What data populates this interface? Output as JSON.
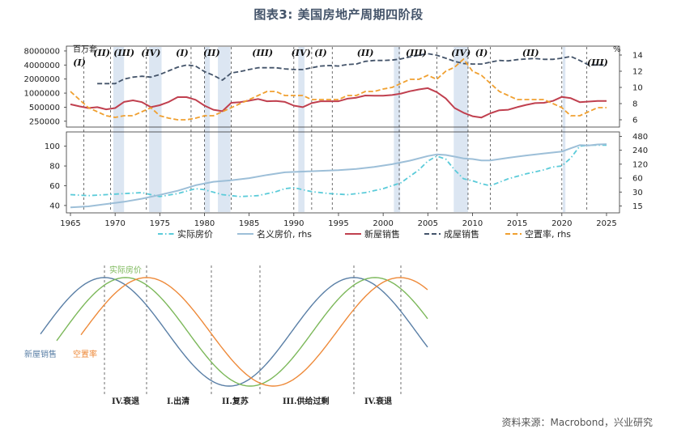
{
  "title": "图表3:  美国房地产周期四阶段",
  "source": "资料来源：Macrobond，兴业研究",
  "colors": {
    "real_price": "#5bcbd9",
    "nominal_price": "#9dbfd8",
    "new_sales": "#c0404f",
    "existing_sales": "#44546a",
    "vacancy": "#f0a030",
    "shade": "#dce6f2",
    "curve_new": "#5a7fa6",
    "curve_real": "#7cb85a",
    "curve_vac": "#ee8a3a"
  },
  "chart_data": [
    {
      "type": "line",
      "panel": "top",
      "units_label": "百万套",
      "right_unit": "%",
      "x_range": [
        1965,
        2026
      ],
      "left_axis": {
        "scale": "log",
        "ticks": [
          250000,
          500000,
          1000000,
          2000000,
          4000000,
          8000000
        ],
        "tick_labels": [
          "250000",
          "500000",
          "1000000",
          "2000000",
          "4000000",
          "8000000"
        ]
      },
      "right_axis": {
        "ticks": [
          6,
          8,
          10,
          12,
          14
        ],
        "range": [
          5.5,
          14.8
        ]
      },
      "series": [
        {
          "name": "新屋销售",
          "axis": "left",
          "color_key": "new_sales",
          "style": "solid",
          "x": [
            1965,
            1966,
            1967,
            1968,
            1969,
            1970,
            1971,
            1972,
            1973,
            1974,
            1975,
            1976,
            1977,
            1978,
            1979,
            1980,
            1981,
            1982,
            1983,
            1984,
            1985,
            1986,
            1987,
            1988,
            1989,
            1990,
            1991,
            1992,
            1993,
            1994,
            1995,
            1996,
            1997,
            1998,
            1999,
            2000,
            2001,
            2002,
            2003,
            2004,
            2005,
            2006,
            2007,
            2008,
            2009,
            2010,
            2011,
            2012,
            2013,
            2014,
            2015,
            2016,
            2017,
            2018,
            2019,
            2020,
            2021,
            2022,
            2023,
            2024,
            2025
          ],
          "y": [
            575000,
            520000,
            480000,
            500000,
            450000,
            480000,
            650000,
            700000,
            640000,
            500000,
            550000,
            650000,
            820000,
            820000,
            720000,
            540000,
            440000,
            410000,
            620000,
            640000,
            690000,
            750000,
            670000,
            680000,
            650000,
            540000,
            500000,
            610000,
            670000,
            670000,
            670000,
            760000,
            800000,
            890000,
            880000,
            880000,
            910000,
            980000,
            1100000,
            1200000,
            1280000,
            1050000,
            770000,
            480000,
            380000,
            320000,
            300000,
            370000,
            430000,
            440000,
            500000,
            560000,
            610000,
            620000,
            680000,
            830000,
            780000,
            640000,
            660000,
            680000,
            680000
          ]
        },
        {
          "name": "成屋销售",
          "axis": "left",
          "color_key": "existing_sales",
          "style": "dash",
          "x": [
            1968,
            1969,
            1970,
            1971,
            1972,
            1973,
            1974,
            1975,
            1976,
            1977,
            1978,
            1979,
            1980,
            1981,
            1982,
            1983,
            1984,
            1985,
            1986,
            1987,
            1988,
            1989,
            1990,
            1991,
            1992,
            1993,
            1994,
            1995,
            1996,
            1997,
            1998,
            1999,
            2000,
            2001,
            2002,
            2003,
            2004,
            2005,
            2006,
            2007,
            2008,
            2009,
            2010,
            2011,
            2012,
            2013,
            2014,
            2015,
            2016,
            2017,
            2018,
            2019,
            2020,
            2021,
            2022,
            2023,
            2024,
            2025
          ],
          "y": [
            1600000,
            1600000,
            1600000,
            2000000,
            2200000,
            2300000,
            2200000,
            2500000,
            3000000,
            3600000,
            4000000,
            3800000,
            2900000,
            2400000,
            1900000,
            2700000,
            2900000,
            3200000,
            3500000,
            3500000,
            3500000,
            3300000,
            3200000,
            3200000,
            3500000,
            3800000,
            3900000,
            3800000,
            4100000,
            4200000,
            4800000,
            5000000,
            5000000,
            5100000,
            5400000,
            6000000,
            6500000,
            7000000,
            6500000,
            5600000,
            4800000,
            4300000,
            4200000,
            4200000,
            4600000,
            5000000,
            4900000,
            5200000,
            5400000,
            5500000,
            5300000,
            5300000,
            5600000,
            6100000,
            5000000,
            4000000,
            4000000,
            4000000
          ]
        },
        {
          "name": "空置率, rhs",
          "axis": "right",
          "color_key": "vacancy",
          "style": "dash",
          "x": [
            1965,
            1966,
            1967,
            1968,
            1969,
            1970,
            1971,
            1972,
            1973,
            1974,
            1975,
            1976,
            1977,
            1978,
            1979,
            1980,
            1981,
            1982,
            1983,
            1984,
            1985,
            1986,
            1987,
            1988,
            1989,
            1990,
            1991,
            1992,
            1993,
            1994,
            1995,
            1996,
            1997,
            1998,
            1999,
            2000,
            2001,
            2002,
            2003,
            2004,
            2005,
            2006,
            2007,
            2008,
            2009,
            2010,
            2011,
            2012,
            2013,
            2014,
            2015,
            2016,
            2017,
            2018,
            2019,
            2020,
            2021,
            2022,
            2023,
            2024,
            2025
          ],
          "y": [
            9.5,
            8.5,
            7.5,
            7.0,
            6.5,
            6.3,
            6.5,
            6.5,
            7.0,
            7.5,
            6.5,
            6.2,
            6.0,
            6.0,
            6.2,
            6.5,
            6.5,
            7.0,
            7.5,
            8.0,
            8.5,
            9.0,
            9.5,
            9.5,
            9.0,
            9.0,
            9.0,
            8.5,
            8.5,
            8.5,
            8.5,
            9.0,
            9.0,
            9.5,
            9.5,
            9.8,
            10.0,
            10.5,
            11.0,
            11.0,
            11.5,
            11.0,
            12.0,
            12.5,
            13.5,
            12.0,
            11.5,
            10.5,
            9.5,
            9.0,
            8.5,
            8.5,
            8.5,
            8.5,
            8.0,
            7.5,
            6.5,
            6.5,
            7.0,
            7.5,
            7.5
          ]
        }
      ],
      "phases": [
        {
          "label": "(I)",
          "x": 1966.0,
          "row": 1
        },
        {
          "label": "(II)",
          "x": 1968.5,
          "row": 0
        },
        {
          "label": "(III)",
          "x": 1971.0,
          "row": 0
        },
        {
          "label": "(IV)",
          "x": 1974.0,
          "row": 0
        },
        {
          "label": "(I)",
          "x": 1977.5,
          "row": 0
        },
        {
          "label": "(II)",
          "x": 1980.8,
          "row": 0
        },
        {
          "label": "(III)",
          "x": 1986.5,
          "row": 0
        },
        {
          "label": "(IV)",
          "x": 1990.8,
          "row": 0
        },
        {
          "label": "(I)",
          "x": 1993.0,
          "row": 0
        },
        {
          "label": "(II)",
          "x": 1998.0,
          "row": 0
        },
        {
          "label": "(III)",
          "x": 2003.7,
          "row": 0
        },
        {
          "label": "(IV)",
          "x": 2008.7,
          "row": 0
        },
        {
          "label": "(I)",
          "x": 2011.0,
          "row": 0
        },
        {
          "label": "(II)",
          "x": 2016.5,
          "row": 0
        },
        {
          "label": "(III)",
          "x": 2024.0,
          "row": 1
        }
      ]
    },
    {
      "type": "line",
      "panel": "bottom",
      "x_range": [
        1965,
        2026
      ],
      "x_ticks": [
        1965,
        1970,
        1975,
        1980,
        1985,
        1990,
        1995,
        2000,
        2005,
        2010,
        2015,
        2020,
        2025
      ],
      "left_axis": {
        "ticks": [
          40,
          60,
          80,
          100
        ],
        "range": [
          35,
          112
        ]
      },
      "right_axis": {
        "scale": "log",
        "ticks": [
          15,
          30,
          60,
          120,
          240,
          480
        ],
        "range": [
          12,
          530
        ]
      },
      "series": [
        {
          "name": "实际房价",
          "axis": "left",
          "color_key": "real_price",
          "style": "dashdot",
          "x": [
            1965,
            1967,
            1969,
            1971,
            1973,
            1975,
            1977,
            1979,
            1980,
            1982,
            1984,
            1986,
            1988,
            1989,
            1990,
            1992,
            1994,
            1996,
            1998,
            2000,
            2002,
            2004,
            2005,
            2006,
            2007,
            2008,
            2009,
            2010,
            2011,
            2012,
            2014,
            2016,
            2018,
            2019,
            2020,
            2021,
            2022,
            2023,
            2024,
            2025
          ],
          "y": [
            51,
            50,
            51,
            52,
            53,
            49,
            52,
            57,
            56,
            51,
            49,
            50,
            54,
            57,
            58,
            54,
            52,
            51,
            53,
            57,
            63,
            76,
            85,
            90,
            87,
            76,
            67,
            65,
            62,
            60,
            67,
            72,
            76,
            79,
            80,
            88,
            100,
            101,
            101,
            101
          ]
        },
        {
          "name": "名义房价, rhs",
          "axis": "right",
          "color_key": "nominal_price",
          "style": "solid",
          "x": [
            1965,
            1967,
            1969,
            1971,
            1973,
            1975,
            1977,
            1979,
            1981,
            1983,
            1985,
            1987,
            1989,
            1991,
            1993,
            1995,
            1997,
            1999,
            2001,
            2003,
            2005,
            2006,
            2007,
            2008,
            2009,
            2010,
            2011,
            2012,
            2014,
            2016,
            2018,
            2020,
            2021,
            2022,
            2023,
            2024,
            2025
          ],
          "y": [
            14,
            14.7,
            16.5,
            18.5,
            21.5,
            26,
            32,
            42,
            50,
            54,
            60,
            70,
            80,
            83,
            86,
            89,
            95,
            105,
            120,
            143,
            180,
            195,
            190,
            175,
            160,
            155,
            145,
            145,
            165,
            185,
            205,
            225,
            265,
            310,
            305,
            320,
            325
          ]
        }
      ]
    }
  ],
  "legend": [
    {
      "label": "实际房价",
      "color_key": "real_price",
      "style": "dashdot"
    },
    {
      "label": "名义房价, rhs",
      "color_key": "nominal_price",
      "style": "solid"
    },
    {
      "label": "新屋销售",
      "color_key": "new_sales",
      "style": "solid"
    },
    {
      "label": "成屋销售",
      "color_key": "existing_sales",
      "style": "dash"
    },
    {
      "label": "空置率, rhs",
      "color_key": "vacancy",
      "style": "dash"
    }
  ],
  "cycle_years": [
    1966.5,
    1969.5,
    1973.5,
    1978.5,
    1980.0,
    1983.0,
    1990.0,
    1992.0,
    1994.3,
    2001.8,
    2006.0,
    2009.5,
    2012.0,
    2020.0,
    2022.8
  ],
  "shaded_years": [
    [
      1969.8,
      1971.0
    ],
    [
      1973.8,
      1975.2
    ],
    [
      1980.0,
      1980.6
    ],
    [
      1981.5,
      1982.9
    ],
    [
      1990.5,
      1991.2
    ],
    [
      2001.2,
      2001.9
    ],
    [
      2007.9,
      2009.5
    ],
    [
      2020.1,
      2020.4
    ]
  ],
  "schematic": {
    "labels": {
      "real": "实际房价",
      "new": "新屋销售",
      "vacancy": "空置率"
    },
    "stages": [
      "IV.衰退",
      "I.出清",
      "II.复苏",
      "III.供给过剩",
      "IV.衰退"
    ]
  }
}
